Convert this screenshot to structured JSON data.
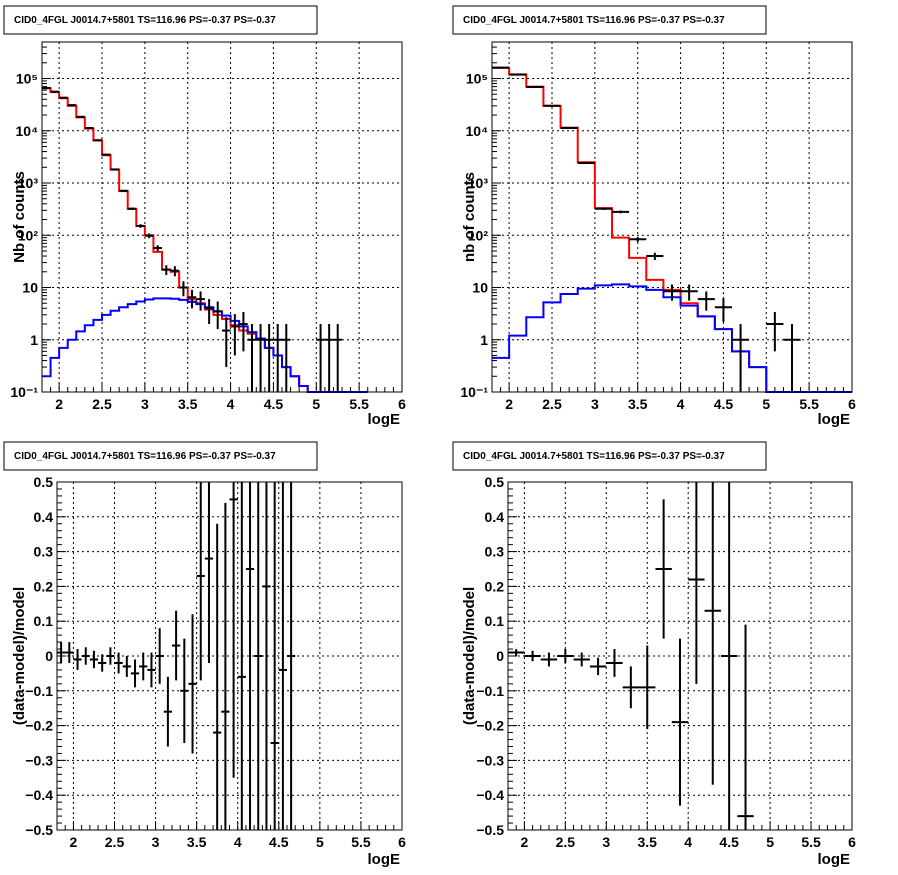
{
  "chart_data": [
    {
      "type": "histogram",
      "title": "CID0_4FGL J0014.7+5801 TS=116.96 PS=-0.37 PS=-0.37",
      "xlabel": "logE",
      "ylabel": "Nb of counts",
      "xlim": [
        1.8,
        6
      ],
      "ylim": [
        0.1,
        500000
      ],
      "yscale": "log",
      "xticks": [
        2,
        2.5,
        3,
        3.5,
        4,
        4.5,
        5,
        5.5,
        6
      ],
      "xtick_labels": [
        "2",
        "2.5",
        "3",
        "3.5",
        "4",
        "4.5",
        "5",
        "5.5",
        "6"
      ],
      "yticks": [
        0.1,
        1,
        10,
        100,
        1000,
        10000,
        100000
      ],
      "ytick_labels": [
        "10⁻¹",
        "1",
        "10",
        "10²",
        "10³",
        "10⁴",
        "10⁵"
      ],
      "grid": true,
      "bin_edges": [
        1.8,
        1.9,
        2.0,
        2.1,
        2.2,
        2.3,
        2.4,
        2.5,
        2.6,
        2.7,
        2.8,
        2.9,
        3.0,
        3.1,
        3.2,
        3.3,
        3.4,
        3.5,
        3.6,
        3.7,
        3.8,
        3.9,
        4.0,
        4.1,
        4.2,
        4.3,
        4.4,
        4.5,
        4.6,
        4.7,
        4.8,
        4.9,
        5.0,
        5.1,
        5.2,
        5.3,
        5.4,
        5.5,
        5.6,
        5.7,
        5.8,
        5.9,
        6.0
      ],
      "series": [
        {
          "role": "model-total",
          "color": "#ff0000",
          "values": [
            65000,
            55000,
            42000,
            30000,
            18000,
            11000,
            6500,
            3400,
            1800,
            700,
            320,
            150,
            100,
            48,
            22,
            20,
            10,
            6,
            5,
            3.8,
            3,
            2.5,
            1.9,
            1.5,
            1.3,
            1.05,
            0.7,
            0.5,
            0.3,
            0.2,
            0.13,
            0.09,
            0.08,
            0.08,
            0.08,
            0.08,
            0.08,
            0.08
          ]
        },
        {
          "role": "model-source",
          "color": "#0000ff",
          "values": [
            0.2,
            0.45,
            0.7,
            1.0,
            1.45,
            1.9,
            2.4,
            3.0,
            3.6,
            4.2,
            4.8,
            5.4,
            5.9,
            6.2,
            6.2,
            6.1,
            5.8,
            5.3,
            4.8,
            4.2,
            3.5,
            2.9,
            2.3,
            1.8,
            1.4,
            1.05,
            0.7,
            0.5,
            0.3,
            0.2,
            0.13,
            0.09,
            0.08,
            0.08,
            0.08,
            0.08,
            0.08,
            0.08
          ]
        },
        {
          "role": "data",
          "color": "#000000",
          "type": "errorbar",
          "x": [
            1.85,
            1.95,
            2.05,
            2.15,
            2.25,
            2.35,
            2.45,
            2.55,
            2.65,
            2.75,
            2.85,
            2.95,
            3.05,
            3.15,
            3.25,
            3.35,
            3.45,
            3.55,
            3.65,
            3.75,
            3.85,
            3.95,
            4.05,
            4.15,
            4.25,
            4.35,
            4.45,
            4.55,
            4.65,
            5.05,
            5.15,
            5.25
          ],
          "y": [
            66000,
            56000,
            43000,
            31000,
            18500,
            11300,
            6600,
            3500,
            1820,
            710,
            322,
            151,
            98,
            57,
            22,
            21,
            10,
            6.5,
            6,
            4,
            3.5,
            1.5,
            1.8,
            2,
            1,
            1,
            1,
            1,
            1,
            1,
            1,
            1
          ],
          "yerr": [
            260,
            240,
            210,
            180,
            140,
            106,
            81,
            59,
            43,
            27,
            18,
            12,
            10,
            7.5,
            4.7,
            4.6,
            3.2,
            2.5,
            2.4,
            2,
            1.9,
            1.2,
            1.3,
            1.4,
            1,
            1,
            1,
            1,
            1,
            1,
            1,
            1
          ]
        }
      ]
    },
    {
      "type": "histogram",
      "title": "CID0_4FGL J0014.7+5801 TS=116.96 PS=-0.37 PS=-0.37",
      "xlabel": "logE",
      "ylabel": "nb of counts",
      "xlim": [
        1.8,
        6
      ],
      "ylim": [
        0.1,
        500000
      ],
      "yscale": "log",
      "xticks": [
        2,
        2.5,
        3,
        3.5,
        4,
        4.5,
        5,
        5.5,
        6
      ],
      "xtick_labels": [
        "2",
        "2.5",
        "3",
        "3.5",
        "4",
        "4.5",
        "5",
        "5.5",
        "6"
      ],
      "yticks": [
        0.1,
        1,
        10,
        100,
        1000,
        10000,
        100000
      ],
      "ytick_labels": [
        "10⁻¹",
        "1",
        "10",
        "10²",
        "10³",
        "10⁴",
        "10⁵"
      ],
      "grid": true,
      "bin_edges": [
        1.8,
        2.0,
        2.2,
        2.4,
        2.6,
        2.8,
        3.0,
        3.2,
        3.4,
        3.6,
        3.8,
        4.0,
        4.2,
        4.4,
        4.6,
        4.8,
        5.0,
        5.2,
        5.4,
        5.6,
        5.8,
        6.0
      ],
      "series": [
        {
          "role": "model-total",
          "color": "#ff0000",
          "values": [
            160000,
            120000,
            70000,
            30000,
            11500,
            2500,
            330,
            90,
            37,
            14,
            9,
            5,
            2.8,
            1.6,
            0.6,
            0.3,
            0.1,
            0.1,
            0.1,
            0.1,
            0.1
          ]
        },
        {
          "role": "model-source",
          "color": "#0000ff",
          "values": [
            0.45,
            1.2,
            2.7,
            5.2,
            7.5,
            9.5,
            11,
            11.5,
            10.5,
            9,
            6.5,
            4.5,
            2.8,
            1.6,
            0.6,
            0.3,
            0.1,
            0.1,
            0.1,
            0.1,
            0.1
          ]
        },
        {
          "role": "data",
          "color": "#000000",
          "type": "errorbar",
          "x": [
            1.9,
            2.1,
            2.3,
            2.5,
            2.7,
            2.9,
            3.1,
            3.3,
            3.5,
            3.7,
            3.9,
            4.1,
            4.3,
            4.5,
            4.7,
            5.1,
            5.3
          ],
          "y": [
            162000,
            119000,
            69000,
            30100,
            11300,
            2420,
            322,
            280,
            84,
            40,
            8.5,
            8.5,
            6,
            4.2,
            1,
            2,
            1
          ],
          "yerr": [
            400,
            345,
            263,
            173,
            106,
            49,
            18,
            16.7,
            9.2,
            6.3,
            2.9,
            2.9,
            2.4,
            2,
            1,
            1.4,
            1
          ]
        }
      ]
    },
    {
      "type": "errorbar",
      "title": "CID0_4FGL J0014.7+5801 TS=116.96 PS=-0.37 PS=-0.37",
      "xlabel": "logE",
      "ylabel": "(data-model)/model",
      "xlim": [
        1.8,
        6
      ],
      "ylim": [
        -0.5,
        0.5
      ],
      "xticks": [
        2,
        2.5,
        3,
        3.5,
        4,
        4.5,
        5,
        5.5,
        6
      ],
      "xtick_labels": [
        "2",
        "2.5",
        "3",
        "3.5",
        "4",
        "4.5",
        "5",
        "5.5",
        "6"
      ],
      "yticks": [
        -0.5,
        -0.4,
        -0.3,
        -0.2,
        -0.1,
        0,
        0.1,
        0.2,
        0.3,
        0.4,
        0.5
      ],
      "ytick_labels": [
        "−0.5",
        "−0.4",
        "−0.3",
        "−0.2",
        "−0.1",
        "0",
        "0.1",
        "0.2",
        "0.3",
        "0.4",
        "0.5"
      ],
      "grid": true,
      "series": [
        {
          "role": "residuals",
          "color": "#000000",
          "x": [
            1.85,
            1.95,
            2.05,
            2.15,
            2.25,
            2.35,
            2.45,
            2.55,
            2.65,
            2.75,
            2.85,
            2.95,
            3.05,
            3.15,
            3.25,
            3.35,
            3.45,
            3.55,
            3.65,
            3.75,
            3.85,
            3.95,
            4.05,
            4.15,
            4.25,
            4.35,
            4.45,
            4.55,
            4.65
          ],
          "y": [
            0.01,
            0.01,
            -0.01,
            0.0,
            -0.01,
            -0.02,
            0.0,
            -0.02,
            -0.03,
            -0.05,
            -0.03,
            -0.04,
            0.0,
            -0.16,
            0.03,
            -0.1,
            -0.08,
            0.23,
            0.28,
            -0.22,
            -0.16,
            0.45,
            -0.06,
            0.25,
            0.0,
            0.2,
            -0.25,
            -0.04,
            0.0
          ],
          "yerr": [
            0.03,
            0.03,
            0.03,
            0.025,
            0.025,
            0.025,
            0.025,
            0.03,
            0.03,
            0.04,
            0.04,
            0.05,
            0.08,
            0.1,
            0.1,
            0.15,
            0.2,
            0.3,
            0.3,
            0.6,
            0.6,
            0.8,
            0.8,
            0.8,
            0.9,
            0.9,
            0.9,
            0.9,
            0.9
          ]
        }
      ]
    },
    {
      "type": "errorbar",
      "title": "CID0_4FGL J0014.7+5801 TS=116.96 PS=-0.37 PS=-0.37",
      "xlabel": "logE",
      "ylabel": "(data-model)/model",
      "xlim": [
        1.8,
        6
      ],
      "ylim": [
        -0.5,
        0.5
      ],
      "xticks": [
        2,
        2.5,
        3,
        3.5,
        4,
        4.5,
        5,
        5.5,
        6
      ],
      "xtick_labels": [
        "2",
        "2.5",
        "3",
        "3.5",
        "4",
        "4.5",
        "5",
        "5.5",
        "6"
      ],
      "yticks": [
        -0.5,
        -0.4,
        -0.3,
        -0.2,
        -0.1,
        0,
        0.1,
        0.2,
        0.3,
        0.4,
        0.5
      ],
      "ytick_labels": [
        "−0.5",
        "−0.4",
        "−0.3",
        "−0.2",
        "−0.1",
        "0",
        "0.1",
        "0.2",
        "0.3",
        "0.4",
        "0.5"
      ],
      "grid": true,
      "series": [
        {
          "role": "residuals",
          "color": "#000000",
          "x": [
            1.9,
            2.1,
            2.3,
            2.5,
            2.7,
            2.9,
            3.1,
            3.3,
            3.5,
            3.7,
            3.9,
            4.1,
            4.3,
            4.5,
            4.7
          ],
          "y": [
            0.01,
            0.0,
            -0.01,
            0.0,
            -0.01,
            -0.03,
            -0.02,
            -0.09,
            -0.09,
            0.25,
            -0.19,
            0.22,
            0.13,
            0.0,
            -0.46
          ],
          "yerr": [
            0.01,
            0.015,
            0.02,
            0.02,
            0.02,
            0.025,
            0.04,
            0.06,
            0.12,
            0.2,
            0.24,
            0.3,
            0.5,
            0.8,
            0.55
          ]
        }
      ]
    }
  ]
}
